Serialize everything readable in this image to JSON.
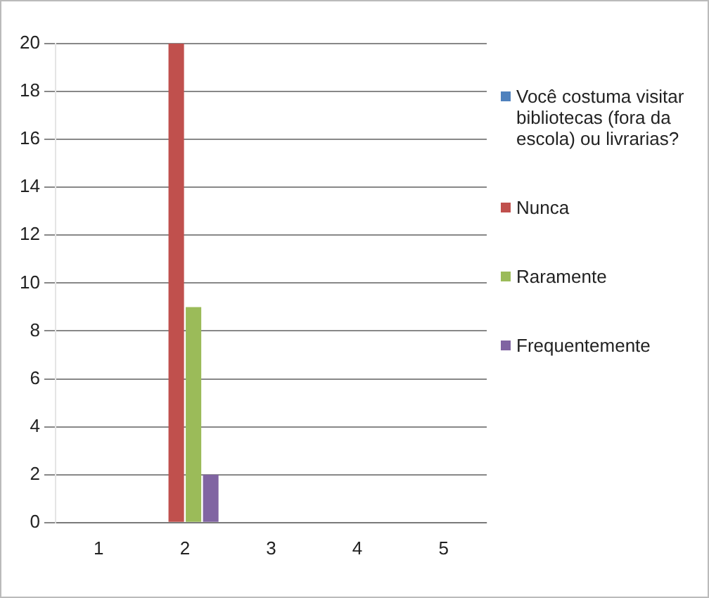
{
  "chart_data": {
    "type": "bar",
    "categories": [
      "1",
      "2",
      "3",
      "4",
      "5"
    ],
    "series": [
      {
        "name": "Você costuma visitar bibliotecas (fora da escola) ou livrarias?",
        "color": "#4f81bd",
        "values": [
          null,
          null,
          null,
          null,
          null
        ]
      },
      {
        "name": "Nunca",
        "color": "#c0504d",
        "values": [
          null,
          20,
          null,
          null,
          null
        ]
      },
      {
        "name": "Raramente",
        "color": "#9bbb59",
        "values": [
          null,
          9,
          null,
          null,
          null
        ]
      },
      {
        "name": "Frequentemente",
        "color": "#8064a2",
        "values": [
          null,
          2,
          null,
          null,
          null
        ]
      }
    ],
    "ylim": [
      0,
      20
    ],
    "yticks": [
      0,
      2,
      4,
      6,
      8,
      10,
      12,
      14,
      16,
      18,
      20
    ],
    "grid": "y",
    "legend": "right"
  }
}
